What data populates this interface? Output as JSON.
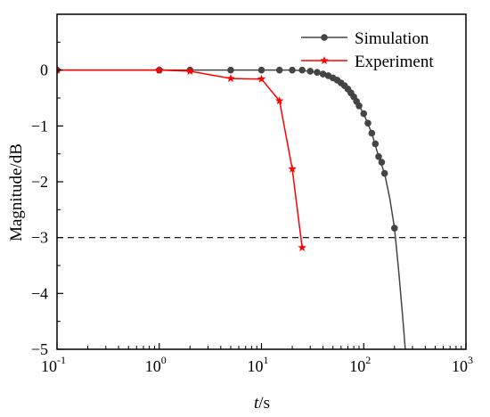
{
  "chart_data": {
    "type": "line",
    "xlabel_italic": "t",
    "xlabel_unit": "/s",
    "ylabel": "Magnitude/dB",
    "xscale": "log",
    "xlim": [
      0.1,
      1000
    ],
    "ylim": [
      -5,
      1
    ],
    "x_ticks": [
      0.1,
      1,
      10,
      100,
      1000
    ],
    "x_tick_labels": [
      {
        "base": "10",
        "exp": "-1"
      },
      {
        "base": "10",
        "exp": "0"
      },
      {
        "base": "10",
        "exp": "1"
      },
      {
        "base": "10",
        "exp": "2"
      },
      {
        "base": "10",
        "exp": "3"
      }
    ],
    "y_ticks": [
      -5,
      -4,
      -3,
      -2,
      -1,
      0
    ],
    "y_tick_labels": [
      "−5",
      "−4",
      "−3",
      "−2",
      "−1",
      "0"
    ],
    "grid": false,
    "legend_position": "top-right",
    "reference_line": {
      "y": -3,
      "style": "dashed"
    },
    "series": [
      {
        "name": "Simulation",
        "color": "#444444",
        "marker": "circle",
        "markers": [
          {
            "x": 0.1,
            "y": 0
          },
          {
            "x": 1,
            "y": 0
          },
          {
            "x": 2,
            "y": 0
          },
          {
            "x": 5,
            "y": 0
          },
          {
            "x": 10,
            "y": 0
          },
          {
            "x": 15,
            "y": 0
          },
          {
            "x": 20,
            "y": 0
          },
          {
            "x": 25,
            "y": 0
          },
          {
            "x": 30,
            "y": -0.02
          },
          {
            "x": 35,
            "y": -0.04
          },
          {
            "x": 40,
            "y": -0.07
          },
          {
            "x": 45,
            "y": -0.1
          },
          {
            "x": 50,
            "y": -0.14
          },
          {
            "x": 55,
            "y": -0.18
          },
          {
            "x": 60,
            "y": -0.23
          },
          {
            "x": 65,
            "y": -0.28
          },
          {
            "x": 70,
            "y": -0.34
          },
          {
            "x": 75,
            "y": -0.41
          },
          {
            "x": 80,
            "y": -0.48
          },
          {
            "x": 85,
            "y": -0.56
          },
          {
            "x": 90,
            "y": -0.64
          },
          {
            "x": 100,
            "y": -0.78
          },
          {
            "x": 110,
            "y": -0.95
          },
          {
            "x": 120,
            "y": -1.13
          },
          {
            "x": 130,
            "y": -1.32
          },
          {
            "x": 140,
            "y": -1.55
          },
          {
            "x": 150,
            "y": -1.65
          },
          {
            "x": 160,
            "y": -1.85
          },
          {
            "x": 200,
            "y": -2.83
          }
        ],
        "line": [
          {
            "x": 0.1,
            "y": 0
          },
          {
            "x": 20,
            "y": 0
          },
          {
            "x": 30,
            "y": -0.02
          },
          {
            "x": 40,
            "y": -0.07
          },
          {
            "x": 50,
            "y": -0.14
          },
          {
            "x": 60,
            "y": -0.23
          },
          {
            "x": 70,
            "y": -0.34
          },
          {
            "x": 80,
            "y": -0.48
          },
          {
            "x": 90,
            "y": -0.64
          },
          {
            "x": 100,
            "y": -0.78
          },
          {
            "x": 120,
            "y": -1.13
          },
          {
            "x": 140,
            "y": -1.55
          },
          {
            "x": 160,
            "y": -1.85
          },
          {
            "x": 180,
            "y": -2.3
          },
          {
            "x": 200,
            "y": -2.83
          },
          {
            "x": 220,
            "y": -3.6
          },
          {
            "x": 240,
            "y": -4.4
          },
          {
            "x": 255,
            "y": -5
          }
        ]
      },
      {
        "name": "Experiment",
        "color": "#ff0000",
        "marker": "star",
        "markers": [
          {
            "x": 0.1,
            "y": 0
          },
          {
            "x": 1,
            "y": 0
          },
          {
            "x": 2,
            "y": -0.02
          },
          {
            "x": 5,
            "y": -0.15
          },
          {
            "x": 10,
            "y": -0.16
          },
          {
            "x": 15,
            "y": -0.55
          },
          {
            "x": 20,
            "y": -1.77
          },
          {
            "x": 25,
            "y": -3.18
          }
        ],
        "line": [
          {
            "x": 0.1,
            "y": 0
          },
          {
            "x": 1,
            "y": 0
          },
          {
            "x": 2,
            "y": -0.02
          },
          {
            "x": 5,
            "y": -0.15
          },
          {
            "x": 10,
            "y": -0.16
          },
          {
            "x": 15,
            "y": -0.55
          },
          {
            "x": 20,
            "y": -1.77
          },
          {
            "x": 25,
            "y": -3.18
          }
        ]
      }
    ]
  }
}
